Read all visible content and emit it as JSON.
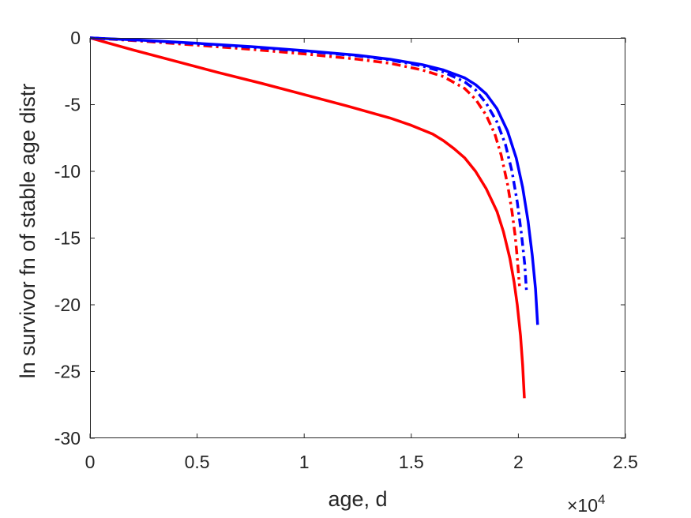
{
  "chart_data": {
    "type": "line",
    "title": "",
    "xlabel": "age, d",
    "ylabel": "ln survivor fn of stable age distr",
    "x_exponent_label": "×10",
    "x_exponent_power": "4",
    "xlim": [
      0,
      25000
    ],
    "ylim": [
      -30,
      0
    ],
    "x_ticks": [
      0,
      5000,
      10000,
      15000,
      20000,
      25000
    ],
    "x_tick_labels": [
      "0",
      "0.5",
      "1",
      "1.5",
      "2",
      "2.5"
    ],
    "y_ticks": [
      0,
      -5,
      -10,
      -15,
      -20,
      -25,
      -30
    ],
    "y_tick_labels": [
      "0",
      "-5",
      "-10",
      "-15",
      "-20",
      "-25",
      "-30"
    ],
    "grid": false,
    "series": [
      {
        "color": "#ff0000",
        "dash": "solid",
        "x": [
          0,
          2000,
          4000,
          6000,
          8000,
          10000,
          12000,
          14000,
          15000,
          16000,
          16500,
          17000,
          17500,
          18000,
          18500,
          19000,
          19300,
          19600,
          19800,
          19950,
          20100,
          20200,
          20280
        ],
        "y": [
          0,
          -0.9,
          -1.75,
          -2.6,
          -3.4,
          -4.25,
          -5.1,
          -6.0,
          -6.55,
          -7.2,
          -7.7,
          -8.3,
          -9.0,
          -10.0,
          -11.3,
          -13.0,
          -14.5,
          -16.5,
          -18.3,
          -20.0,
          -22.3,
          -24.5,
          -27.0
        ]
      },
      {
        "color": "#ff0000",
        "dash": "dashdot",
        "x": [
          0,
          2500,
          5000,
          7500,
          10000,
          12500,
          14000,
          15500,
          16500,
          17500,
          18000,
          18500,
          18900,
          19200,
          19500,
          19700,
          19850,
          19950,
          20050
        ],
        "y": [
          0,
          -0.25,
          -0.55,
          -0.85,
          -1.2,
          -1.6,
          -1.9,
          -2.4,
          -2.9,
          -3.8,
          -4.6,
          -5.8,
          -7.2,
          -8.8,
          -11.0,
          -13.0,
          -14.8,
          -16.5,
          -18.6
        ]
      },
      {
        "color": "#0000ff",
        "dash": "dashdot",
        "x": [
          0,
          2500,
          5000,
          7500,
          10000,
          12500,
          14000,
          15500,
          16500,
          17500,
          18000,
          18500,
          19000,
          19400,
          19700,
          19950,
          20150,
          20300,
          20380
        ],
        "y": [
          0,
          -0.2,
          -0.45,
          -0.7,
          -1.0,
          -1.35,
          -1.65,
          -2.1,
          -2.55,
          -3.3,
          -3.9,
          -4.9,
          -6.3,
          -8.0,
          -10.0,
          -12.3,
          -14.8,
          -17.0,
          -19.0
        ]
      },
      {
        "color": "#0000ff",
        "dash": "solid",
        "x": [
          0,
          2500,
          5000,
          7500,
          10000,
          12500,
          14000,
          15500,
          16500,
          17500,
          18000,
          18500,
          19000,
          19500,
          19900,
          20200,
          20450,
          20650,
          20800,
          20900
        ],
        "y": [
          0,
          -0.18,
          -0.4,
          -0.65,
          -0.95,
          -1.3,
          -1.6,
          -2.0,
          -2.4,
          -3.0,
          -3.5,
          -4.2,
          -5.3,
          -7.0,
          -9.0,
          -11.2,
          -13.7,
          -16.3,
          -18.8,
          -21.5
        ]
      }
    ]
  }
}
